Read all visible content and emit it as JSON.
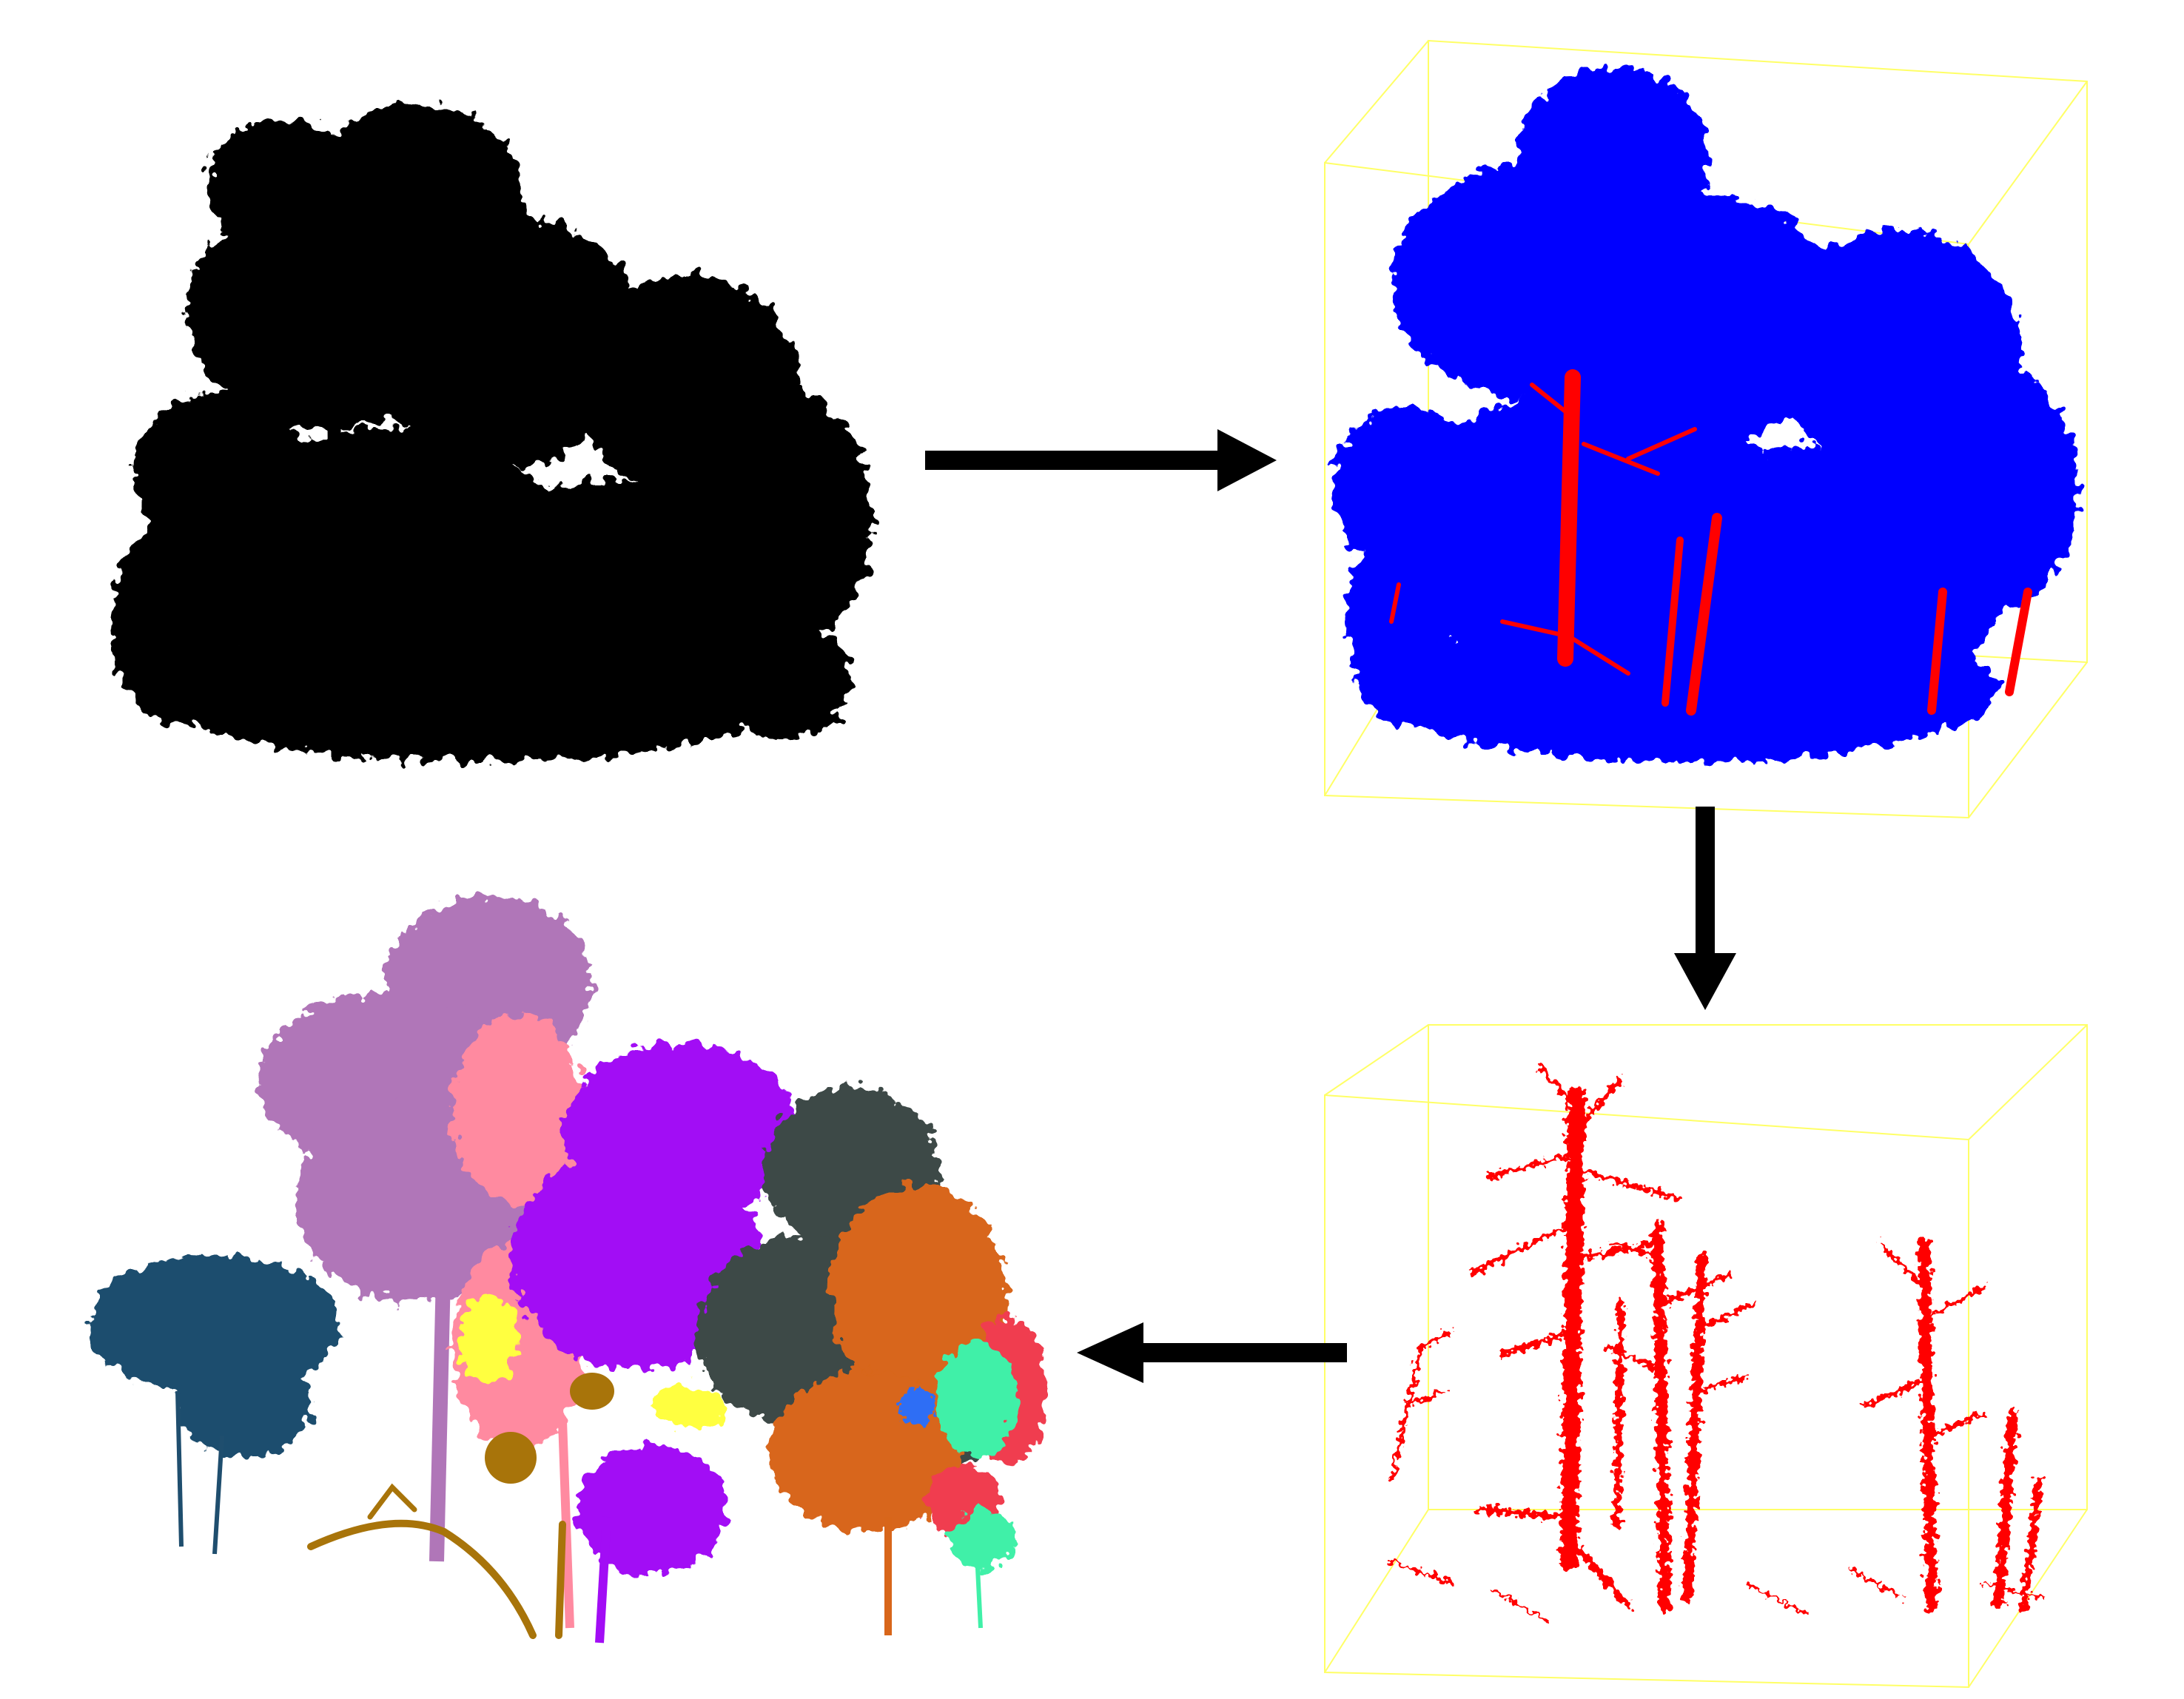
{
  "diagram": {
    "panels": [
      {
        "id": "raw-point-cloud",
        "name": "raw-point-cloud-panel",
        "colors": {
          "points": "#000000"
        }
      },
      {
        "id": "classified-point-cloud",
        "name": "leaf-wood-classified-panel",
        "colors": {
          "leaf": "#0000ff",
          "wood": "#ff0000",
          "box": "#ffff66"
        }
      },
      {
        "id": "wood-points",
        "name": "wood-points-panel",
        "colors": {
          "wood": "#ff0000",
          "box": "#ffff66"
        }
      },
      {
        "id": "segmented-trees",
        "name": "segmented-trees-panel",
        "colors": [
          "#1f4e6e",
          "#b076b8",
          "#ff8aa0",
          "#a20df5",
          "#3e4a46",
          "#d8661a",
          "#ffff40",
          "#a8740a",
          "#2f6ef5",
          "#40f0a8",
          "#f03c50"
        ]
      }
    ],
    "arrows": [
      {
        "from": "raw-point-cloud",
        "to": "classified-point-cloud",
        "direction": "right"
      },
      {
        "from": "classified-point-cloud",
        "to": "wood-points",
        "direction": "down"
      },
      {
        "from": "wood-points",
        "to": "segmented-trees",
        "direction": "left"
      }
    ]
  }
}
